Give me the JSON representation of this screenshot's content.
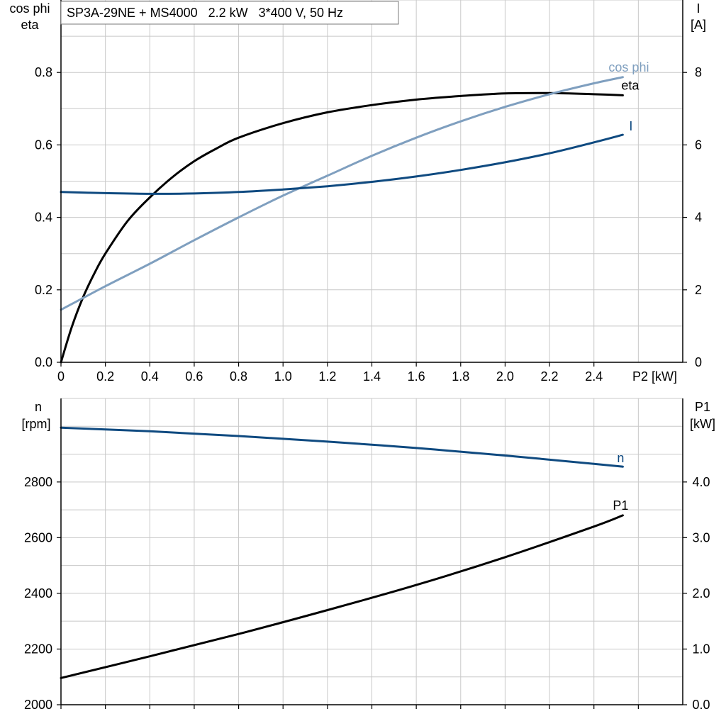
{
  "title": "SP3A-29NE + MS4000   2.2 kW   3*400 V, 50 Hz",
  "colors": {
    "eta": "#000000",
    "cosphi": "#7f9fbf",
    "current": "#0f4a80",
    "n": "#0f4a80",
    "p1": "#000000",
    "grid": "#c8c8c8"
  },
  "chart_data": [
    {
      "type": "line",
      "xlabel": "P2 [kW]",
      "ylabel_left": [
        "cos phi",
        "eta"
      ],
      "ylabel_right": [
        "I",
        "[A]"
      ],
      "xlim": [
        0,
        2.8
      ],
      "ylim_left": [
        0,
        1.0
      ],
      "ylim_right": [
        0,
        10
      ],
      "xticks": [
        "0",
        "0.2",
        "0.4",
        "0.6",
        "0.8",
        "1.0",
        "1.2",
        "1.4",
        "1.6",
        "1.8",
        "2.0",
        "2.2",
        "2.4"
      ],
      "yticks_left": [
        "0.0",
        "0.2",
        "0.4",
        "0.6",
        "0.8"
      ],
      "yticks_right": [
        "0",
        "2",
        "4",
        "6",
        "8"
      ],
      "grid": true,
      "series": [
        {
          "name": "eta",
          "axis": "left",
          "x": [
            0,
            0.05,
            0.1,
            0.15,
            0.2,
            0.3,
            0.4,
            0.5,
            0.6,
            0.7,
            0.8,
            1.0,
            1.2,
            1.4,
            1.6,
            1.8,
            2.0,
            2.2,
            2.4,
            2.53
          ],
          "y": [
            0.0,
            0.1,
            0.18,
            0.245,
            0.3,
            0.39,
            0.455,
            0.51,
            0.555,
            0.59,
            0.62,
            0.66,
            0.69,
            0.71,
            0.725,
            0.735,
            0.742,
            0.743,
            0.74,
            0.737
          ]
        },
        {
          "name": "cos phi",
          "axis": "left",
          "x": [
            0,
            0.2,
            0.4,
            0.6,
            0.8,
            1.0,
            1.2,
            1.4,
            1.6,
            1.8,
            2.0,
            2.2,
            2.4,
            2.53
          ],
          "y": [
            0.145,
            0.21,
            0.272,
            0.337,
            0.4,
            0.46,
            0.515,
            0.57,
            0.62,
            0.665,
            0.705,
            0.74,
            0.77,
            0.787
          ]
        },
        {
          "name": "I",
          "axis": "right",
          "x": [
            0,
            0.2,
            0.4,
            0.6,
            0.8,
            1.0,
            1.2,
            1.4,
            1.6,
            1.8,
            2.0,
            2.2,
            2.4,
            2.53
          ],
          "y": [
            4.7,
            4.67,
            4.65,
            4.66,
            4.7,
            4.77,
            4.86,
            4.98,
            5.13,
            5.31,
            5.52,
            5.77,
            6.07,
            6.28
          ]
        }
      ]
    },
    {
      "type": "line",
      "xlabel": "",
      "ylabel_left": [
        "n",
        "[rpm]"
      ],
      "ylabel_right": [
        "P1",
        "[kW]"
      ],
      "xlim": [
        0,
        2.8
      ],
      "ylim_left": [
        2000,
        3100
      ],
      "ylim_right": [
        0,
        5.5
      ],
      "yticks_left": [
        "2000",
        "2200",
        "2400",
        "2600",
        "2800"
      ],
      "yticks_right": [
        "0.0",
        "1.0",
        "2.0",
        "3.0",
        "4.0"
      ],
      "grid": true,
      "series": [
        {
          "name": "n",
          "axis": "left",
          "x": [
            0,
            0.4,
            0.8,
            1.2,
            1.6,
            2.0,
            2.4,
            2.53
          ],
          "y": [
            2995,
            2982,
            2965,
            2945,
            2922,
            2895,
            2865,
            2855
          ]
        },
        {
          "name": "P1",
          "axis": "right",
          "x": [
            0,
            0.4,
            0.8,
            1.2,
            1.6,
            2.0,
            2.4,
            2.53
          ],
          "y": [
            0.48,
            0.87,
            1.27,
            1.7,
            2.15,
            2.65,
            3.2,
            3.4
          ]
        }
      ]
    }
  ]
}
